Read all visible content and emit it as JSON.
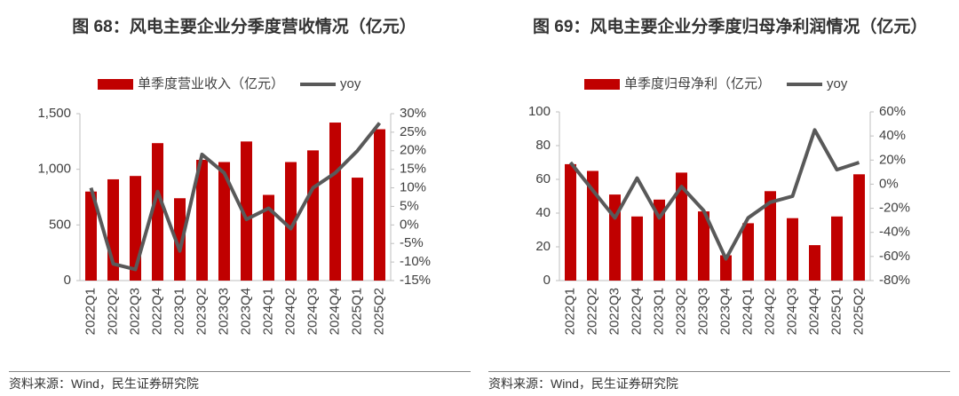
{
  "chart_data": [
    {
      "type": "bar",
      "title": "图 68：风电主要企业分季度营收情况（亿元）",
      "source": "资料来源：Wind，民生证券研究院",
      "categories": [
        "2022Q1",
        "2022Q2",
        "2022Q3",
        "2022Q4",
        "2023Q1",
        "2023Q2",
        "2023Q3",
        "2023Q4",
        "2024Q1",
        "2024Q2",
        "2024Q3",
        "2024Q4",
        "2025Q1",
        "2025Q2"
      ],
      "series": [
        {
          "name": "单季度营业收入（亿元）",
          "type": "bar",
          "color": "#c00000",
          "values": [
            800,
            910,
            940,
            1235,
            740,
            1085,
            1065,
            1250,
            770,
            1065,
            1170,
            1420,
            925,
            1360
          ]
        },
        {
          "name": "yoy",
          "type": "line",
          "axis": "y2",
          "color": "#595959",
          "values": [
            10,
            -10.5,
            -12,
            9,
            -7,
            19,
            14,
            1.5,
            4.5,
            -1,
            10,
            14,
            20,
            27.5
          ]
        }
      ],
      "ylim": [
        0,
        1500
      ],
      "yticks": [
        0,
        500,
        {
          "value": 1000,
          "label": "1,000"
        },
        {
          "value": 1500,
          "label": "1,500"
        }
      ],
      "y2lim": [
        -15,
        30
      ],
      "y2ticks": [
        {
          "value": -15,
          "label": "-15%"
        },
        {
          "value": -10,
          "label": "-10%"
        },
        {
          "value": -5,
          "label": "-5%"
        },
        {
          "value": 0,
          "label": "0%"
        },
        {
          "value": 5,
          "label": "5%"
        },
        {
          "value": 10,
          "label": "10%"
        },
        {
          "value": 15,
          "label": "15%"
        },
        {
          "value": 20,
          "label": "20%"
        },
        {
          "value": 25,
          "label": "25%"
        },
        {
          "value": 30,
          "label": "30%"
        }
      ],
      "legend": "top"
    },
    {
      "type": "bar",
      "title": "图 69：风电主要企业分季度归母净利润情况（亿元）",
      "source": "资料来源：Wind，民生证券研究院",
      "categories": [
        "2022Q1",
        "2022Q2",
        "2022Q3",
        "2022Q4",
        "2023Q1",
        "2023Q2",
        "2023Q3",
        "2023Q4",
        "2024Q1",
        "2024Q2",
        "2024Q3",
        "2024Q4",
        "2025Q1",
        "2025Q2"
      ],
      "series": [
        {
          "name": "单季度归母净利（亿元）",
          "type": "bar",
          "color": "#c00000",
          "values": [
            69,
            65,
            51,
            38,
            48,
            64,
            41,
            15,
            34,
            53,
            37,
            21,
            38,
            63
          ]
        },
        {
          "name": "yoy",
          "type": "line",
          "axis": "y2",
          "color": "#595959",
          "values": [
            18,
            -5,
            -28,
            5,
            -28,
            -2,
            -22,
            -62,
            -28,
            -15,
            -10,
            45,
            12,
            18
          ]
        }
      ],
      "ylim": [
        0,
        100
      ],
      "yticks": [
        0,
        20,
        40,
        60,
        80,
        100
      ],
      "y2lim": [
        -80,
        60
      ],
      "y2ticks": [
        {
          "value": -80,
          "label": "-80%"
        },
        {
          "value": -60,
          "label": "-60%"
        },
        {
          "value": -40,
          "label": "-40%"
        },
        {
          "value": -20,
          "label": "-20%"
        },
        {
          "value": 0,
          "label": "0%"
        },
        {
          "value": 20,
          "label": "20%"
        },
        {
          "value": 40,
          "label": "40%"
        },
        {
          "value": 60,
          "label": "60%"
        }
      ],
      "legend": "top"
    }
  ]
}
